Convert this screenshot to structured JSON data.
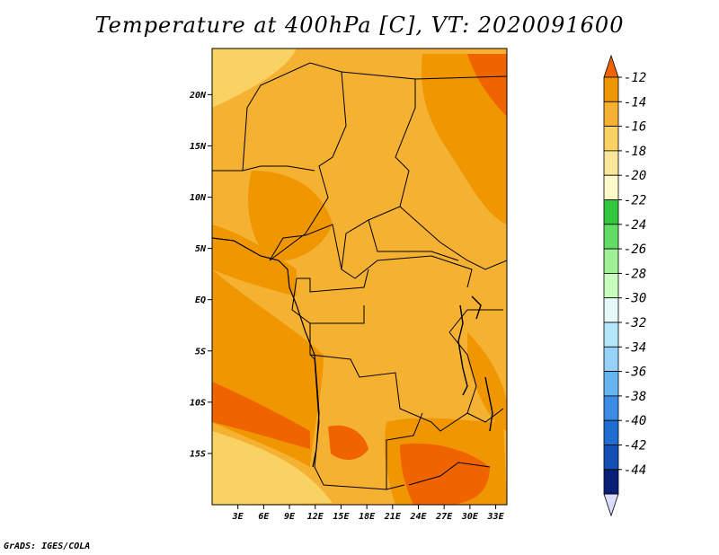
{
  "title": "Temperature at 400hPa [C], VT: 2020091600",
  "credit": "GrADS: IGES/COLA",
  "map": {
    "lat_ticks": [
      "20N",
      "15N",
      "10N",
      "5N",
      "EQ",
      "5S",
      "10S",
      "15S"
    ],
    "lat_values": [
      20,
      15,
      10,
      5,
      0,
      -5,
      -10,
      -15
    ],
    "lon_ticks": [
      "3E",
      "6E",
      "9E",
      "12E",
      "15E",
      "18E",
      "21E",
      "24E",
      "27E",
      "30E",
      "33E"
    ],
    "lon_values": [
      3,
      6,
      9,
      12,
      15,
      18,
      21,
      24,
      27,
      30,
      33
    ]
  },
  "colorbar": {
    "labels": [
      "-12",
      "-14",
      "-16",
      "-18",
      "-20",
      "-22",
      "-24",
      "-26",
      "-28",
      "-30",
      "-32",
      "-34",
      "-36",
      "-38",
      "-40",
      "-42",
      "-44"
    ],
    "colors": [
      "#f06400",
      "#f09600",
      "#f5b132",
      "#fad264",
      "#fae69a",
      "#fffac8",
      "#32c83c",
      "#64dc64",
      "#a0f096",
      "#c8ffbe",
      "#e6fafa",
      "#b4e6fa",
      "#96d2fa",
      "#64b4f0",
      "#3c8ce6",
      "#1e6ed2",
      "#1450b4",
      "#0a1e78",
      "#dcdcff"
    ]
  }
}
